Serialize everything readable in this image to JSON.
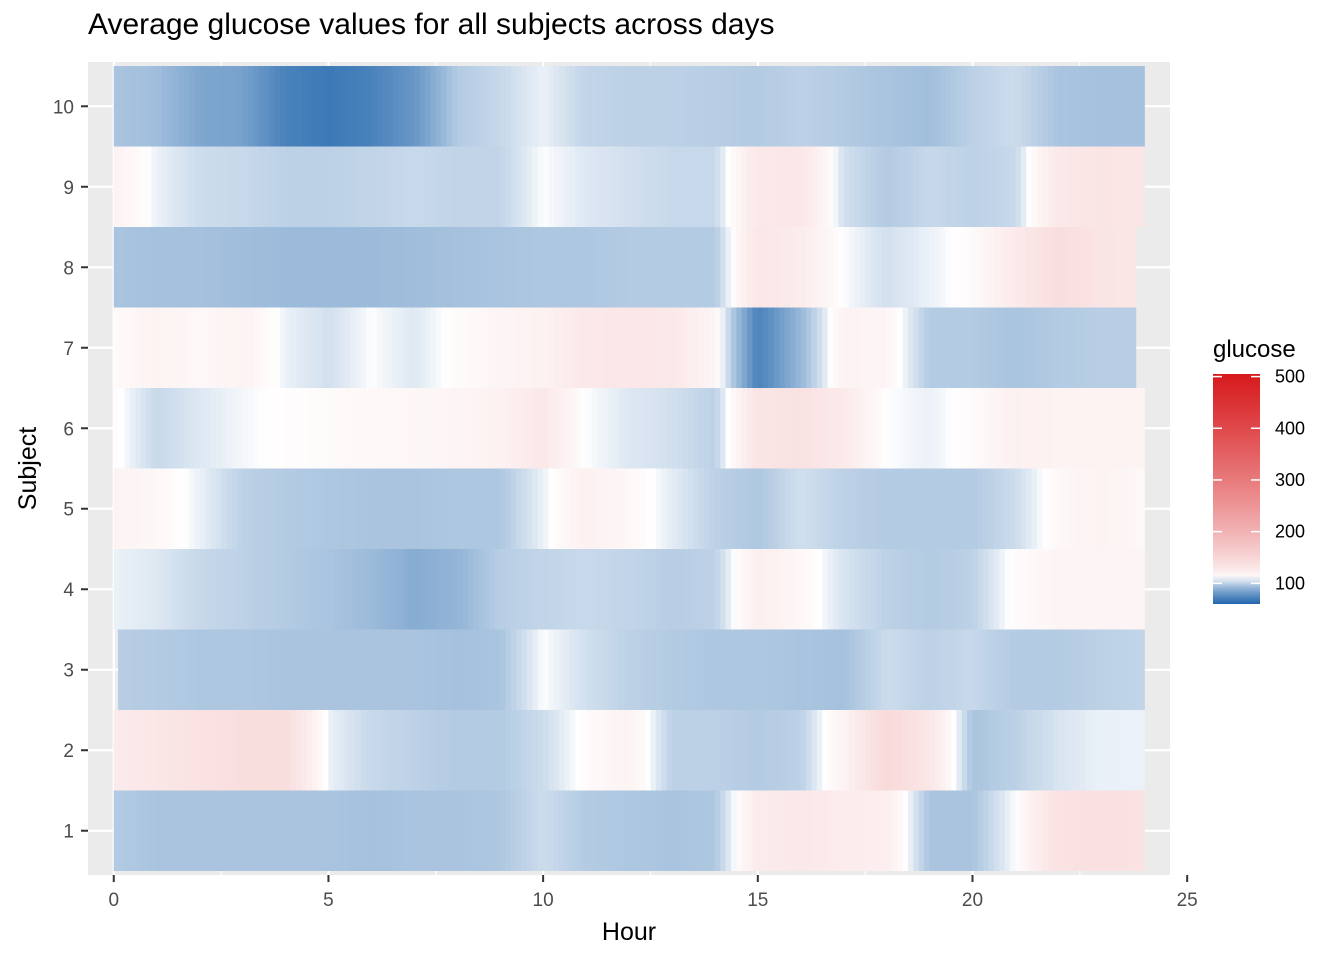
{
  "chart_data": {
    "type": "heatmap",
    "title": "Average glucose values for all subjects across days",
    "xlabel": "Hour",
    "ylabel": "Subject",
    "xlim": [
      -0.6,
      24.6
    ],
    "ylim": [
      0.45,
      10.55
    ],
    "x_ticks": [
      0,
      5,
      10,
      15,
      20,
      25
    ],
    "y_ticks": [
      1,
      2,
      3,
      4,
      5,
      6,
      7,
      8,
      9,
      10
    ],
    "grid": true,
    "legend": {
      "title": "glucose",
      "placement": "right",
      "range": [
        60,
        505
      ],
      "ticks": [
        100,
        200,
        300,
        400,
        500
      ],
      "color_low": "#2166ac",
      "color_mid": "#ffffff",
      "color_high": "#d7191c",
      "midpoint": 110
    },
    "colors": {
      "panel_background": "#ebebeb",
      "grid": "#ffffff"
    },
    "series": [
      {
        "subject": 1,
        "start": 0.0,
        "end": 24.0,
        "hours": [
          0,
          1,
          2,
          3,
          4,
          5,
          6,
          7,
          8,
          9,
          10,
          11,
          12,
          13,
          14,
          15,
          16,
          17,
          18,
          19,
          20,
          21,
          22,
          23,
          24
        ],
        "glucose": [
          98,
          96,
          96,
          96,
          96,
          96,
          95,
          96,
          96,
          97,
          103,
          98,
          97,
          96,
          97,
          125,
          128,
          124,
          122,
          96,
          96,
          110,
          135,
          138,
          135
        ]
      },
      {
        "subject": 2,
        "start": 0.0,
        "end": 24.0,
        "hours": [
          0,
          1,
          2,
          3,
          4,
          5,
          6,
          7,
          8,
          9,
          10,
          11,
          12,
          13,
          14,
          15,
          16,
          17,
          18,
          19,
          20,
          21,
          22,
          23,
          24
        ],
        "glucose": [
          125,
          130,
          135,
          140,
          140,
          108,
          102,
          100,
          98,
          98,
          103,
          112,
          118,
          100,
          100,
          98,
          100,
          118,
          145,
          130,
          96,
          100,
          105,
          108,
          108
        ]
      },
      {
        "subject": 3,
        "start": 0.1,
        "end": 24.0,
        "hours": [
          0,
          1,
          2,
          3,
          4,
          5,
          6,
          7,
          8,
          9,
          10,
          11,
          12,
          13,
          14,
          15,
          16,
          17,
          18,
          19,
          20,
          21,
          22,
          23,
          24
        ],
        "glucose": [
          99,
          98,
          97,
          97,
          96,
          96,
          96,
          96,
          95,
          96,
          110,
          104,
          100,
          98,
          97,
          97,
          96,
          95,
          103,
          100,
          102,
          98,
          98,
          100,
          101
        ]
      },
      {
        "subject": 4,
        "start": 0.0,
        "end": 24.0,
        "hours": [
          0,
          1,
          2,
          3,
          4,
          5,
          6,
          7,
          8,
          9,
          10,
          11,
          12,
          13,
          14,
          15,
          16,
          17,
          18,
          19,
          20,
          21,
          22,
          23,
          24
        ],
        "glucose": [
          108,
          106,
          102,
          100,
          98,
          96,
          93,
          88,
          91,
          99,
          101,
          102,
          101,
          99,
          100,
          122,
          114,
          105,
          100,
          98,
          100,
          112,
          116,
          116,
          116
        ]
      },
      {
        "subject": 5,
        "start": 0.0,
        "end": 24.0,
        "hours": [
          0,
          1,
          2,
          3,
          4,
          5,
          6,
          7,
          8,
          9,
          10,
          11,
          12,
          13,
          14,
          15,
          16,
          17,
          18,
          19,
          20,
          21,
          22,
          23,
          24
        ],
        "glucose": [
          118,
          114,
          108,
          100,
          98,
          97,
          96,
          96,
          97,
          97,
          108,
          120,
          114,
          107,
          100,
          97,
          104,
          100,
          98,
          98,
          98,
          103,
          114,
          118,
          114
        ]
      },
      {
        "subject": 6,
        "start": 0.0,
        "end": 24.0,
        "hours": [
          0,
          1,
          2,
          3,
          4,
          5,
          6,
          7,
          8,
          9,
          10,
          11,
          12,
          13,
          14,
          15,
          16,
          17,
          18,
          19,
          20,
          21,
          22,
          23,
          24
        ],
        "glucose": [
          112,
          102,
          106,
          109,
          111,
          112,
          114,
          115,
          116,
          119,
          128,
          110,
          106,
          104,
          100,
          132,
          135,
          126,
          110,
          108,
          112,
          120,
          118,
          118,
          118
        ]
      },
      {
        "subject": 7,
        "start": 0.0,
        "end": 23.8,
        "hours": [
          0,
          1,
          2,
          3,
          4,
          5,
          6,
          7,
          8,
          9,
          10,
          11,
          12,
          13,
          14,
          15,
          16,
          17,
          18,
          19,
          20,
          21,
          22,
          23,
          24
        ],
        "glucose": [
          112,
          118,
          114,
          118,
          108,
          104,
          110,
          106,
          112,
          116,
          119,
          128,
          130,
          128,
          116,
          72,
          92,
          118,
          116,
          98,
          98,
          96,
          98,
          99,
          99
        ]
      },
      {
        "subject": 8,
        "start": 0.0,
        "end": 23.8,
        "hours": [
          0,
          1,
          2,
          3,
          4,
          5,
          6,
          7,
          8,
          9,
          10,
          11,
          12,
          13,
          14,
          15,
          16,
          17,
          18,
          19,
          20,
          21,
          22,
          23,
          24
        ],
        "glucose": [
          96,
          95,
          95,
          94,
          93,
          93,
          93,
          94,
          95,
          96,
          97,
          97,
          98,
          98,
          98,
          130,
          124,
          110,
          104,
          108,
          112,
          126,
          140,
          132,
          130
        ]
      },
      {
        "subject": 9,
        "start": 0.0,
        "end": 24.0,
        "hours": [
          0,
          1,
          2,
          3,
          4,
          5,
          6,
          7,
          8,
          9,
          10,
          11,
          12,
          13,
          14,
          15,
          16,
          17,
          18,
          19,
          20,
          21,
          22,
          23,
          24
        ],
        "glucose": [
          118,
          108,
          103,
          102,
          100,
          100,
          101,
          102,
          101,
          101,
          110,
          106,
          104,
          102,
          102,
          128,
          130,
          104,
          98,
          102,
          100,
          102,
          128,
          132,
          130
        ]
      },
      {
        "subject": 10,
        "start": 0.0,
        "end": 24.0,
        "hours": [
          0,
          1,
          2,
          3,
          4,
          5,
          6,
          7,
          8,
          9,
          10,
          11,
          12,
          13,
          14,
          15,
          16,
          17,
          18,
          19,
          20,
          21,
          22,
          23,
          24
        ],
        "glucose": [
          96,
          94,
          86,
          84,
          72,
          68,
          72,
          80,
          98,
          102,
          108,
          101,
          100,
          100,
          99,
          98,
          100,
          98,
          96,
          94,
          100,
          103,
          96,
          95,
          95
        ]
      }
    ]
  }
}
